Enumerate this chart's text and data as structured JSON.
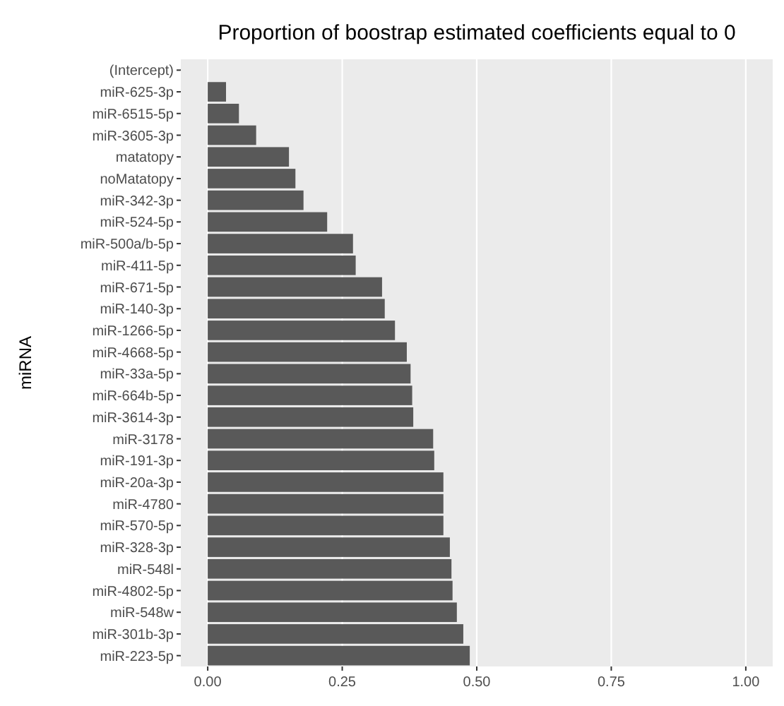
{
  "chart_data": {
    "type": "bar",
    "orientation": "horizontal",
    "title": "Proportion of boostrap estimated coefficients equal to 0",
    "ylabel": "miRNA",
    "categories": [
      "(Intercept)",
      "miR-625-3p",
      "miR-6515-5p",
      "miR-3605-3p",
      "matatopy",
      "noMatatopy",
      "miR-342-3p",
      "miR-524-5p",
      "miR-500a/b-5p",
      "miR-411-5p",
      "miR-671-5p",
      "miR-140-3p",
      "miR-1266-5p",
      "miR-4668-5p",
      "miR-33a-5p",
      "miR-664b-5p",
      "miR-3614-3p",
      "miR-3178",
      "miR-191-3p",
      "miR-20a-3p",
      "miR-4780",
      "miR-570-5p",
      "miR-328-3p",
      "miR-548l",
      "miR-4802-5p",
      "miR-548w",
      "miR-301b-3p",
      "miR-223-5p"
    ],
    "values": [
      0,
      0.034,
      0.058,
      0.09,
      0.151,
      0.163,
      0.178,
      0.222,
      0.27,
      0.275,
      0.324,
      0.329,
      0.348,
      0.37,
      0.377,
      0.38,
      0.382,
      0.419,
      0.421,
      0.438,
      0.438,
      0.438,
      0.45,
      0.453,
      0.455,
      0.463,
      0.475,
      0.487
    ],
    "color": "#595959",
    "xlim": [
      -0.05,
      1.05
    ],
    "xticks": [
      {
        "value": 0,
        "label": "0.00"
      },
      {
        "value": 0.25,
        "label": "0.25"
      },
      {
        "value": 0.5,
        "label": "0.50"
      },
      {
        "value": 0.75,
        "label": "0.75"
      },
      {
        "value": 1,
        "label": "1.00"
      }
    ],
    "grid": "x"
  }
}
